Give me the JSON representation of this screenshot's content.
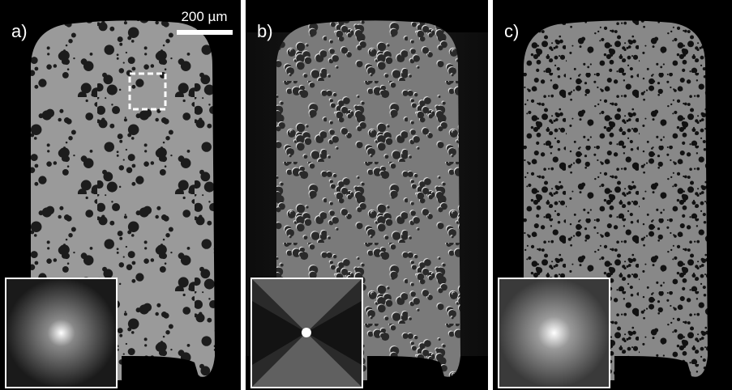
{
  "panels": [
    {
      "label": "a)"
    },
    {
      "label": "b)"
    },
    {
      "label": "c)"
    }
  ],
  "scale_bar": {
    "label": "200 µm"
  }
}
